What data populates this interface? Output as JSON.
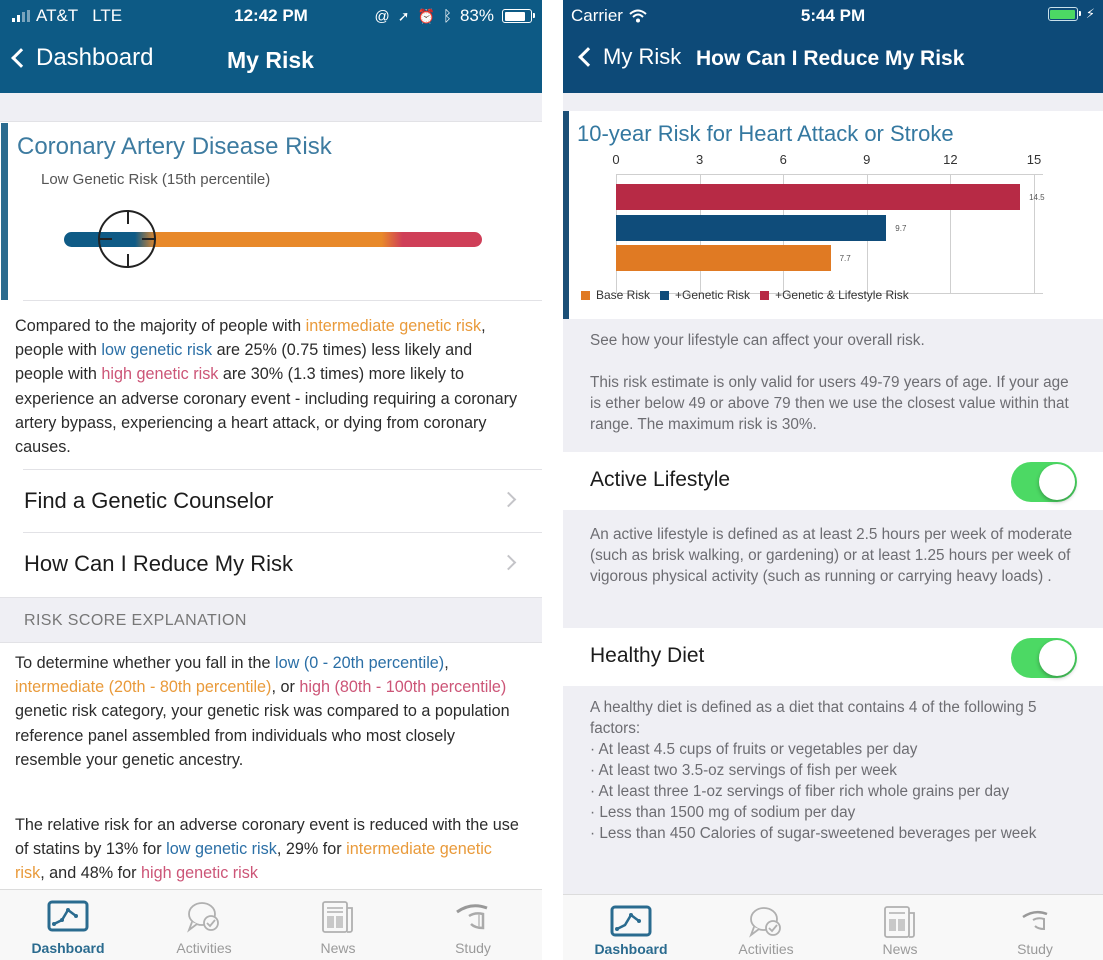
{
  "left": {
    "status": {
      "carrier": "AT&T",
      "network": "LTE",
      "time": "12:42 PM",
      "battery": "83%"
    },
    "nav": {
      "back_label": "Dashboard",
      "title": "My Risk"
    },
    "card": {
      "title": "Coronary Artery Disease Risk",
      "subtitle": "Low Genetic Risk (15th percentile)",
      "percentile": 15,
      "colors": {
        "low": "#0f5b86",
        "intermediate": "#e8892a",
        "high": "#cf3f58"
      }
    },
    "comparison": {
      "p1": "Compared to the majority of people with ",
      "int": "intermediate genetic risk",
      "p2": ", people with ",
      "low": "low genetic risk",
      "p3": " are 25% (0.75 times) less likely and people with ",
      "high": "high genetic risk",
      "p4": " are 30% (1.3 times) more likely to experience an adverse coronary event - including requiring a coronary artery bypass, experiencing a heart attack, or dying from coronary causes."
    },
    "links": [
      {
        "label": "Find a Genetic Counselor"
      },
      {
        "label": "How Can I Reduce My Risk"
      }
    ],
    "section_header": "RISK SCORE EXPLANATION",
    "explanation": {
      "p1": "To determine whether you fall in the ",
      "low": "low (0 - 20th percentile)",
      "p2": ", ",
      "int": "intermediate (20th - 80th percentile)",
      "p3": ", or ",
      "high": "high (80th - 100th percentile)",
      "p4": " genetic risk category, your genetic risk was compared to a population reference panel assembled from individuals who most closely resemble your genetic ancestry."
    },
    "statins": {
      "p1": "The relative risk for an adverse coronary event is reduced with the use of statins by 13% for ",
      "low": "low genetic risk",
      "p2": ", 29% for ",
      "int": "intermediate genetic risk",
      "p3": ", and 48% for ",
      "high": "high genetic risk"
    },
    "tabs": [
      {
        "label": "Dashboard",
        "icon": "chart-line-icon",
        "active": true
      },
      {
        "label": "Activities",
        "icon": "chat-check-icon",
        "active": false
      },
      {
        "label": "News",
        "icon": "newspaper-icon",
        "active": false
      },
      {
        "label": "Study",
        "icon": "study-icon",
        "active": false
      }
    ]
  },
  "right": {
    "status": {
      "carrier": "Carrier",
      "time": "5:44 PM"
    },
    "nav": {
      "back_label": "My Risk",
      "title": "How Can I Reduce My Risk"
    },
    "intro": "See how your lifestyle can affect your overall risk.",
    "validity": "This risk estimate is only valid for users 49-79 years of age. If your age is ether below 49 or above 79 then we use the closest value within that range. The maximum risk is 30%.",
    "toggles": [
      {
        "label": "Active Lifestyle",
        "on": true,
        "description": "An active lifestyle is defined as at least 2.5 hours per week of moderate (such as brisk walking, or gardening) or at least 1.25 hours per week of vigorous physical activity (such as running or carrying heavy loads) ."
      },
      {
        "label": "Healthy Diet",
        "on": true,
        "description_intro": "A healthy diet is defined as a diet that contains 4 of the following 5 factors:",
        "factors": [
          "· At least 4.5 cups of fruits or vegetables per day",
          "· At least two 3.5-oz servings of fish per week",
          "· At least three 1-oz servings of fiber rich whole grains per day",
          "· Less than 1500 mg of sodium per day",
          "· Less than 450 Calories of sugar-sweetened beverages per week"
        ]
      }
    ],
    "tabs": [
      {
        "label": "Dashboard",
        "active": true
      },
      {
        "label": "Activities",
        "active": false
      },
      {
        "label": "News",
        "active": false
      },
      {
        "label": "Study",
        "active": false
      }
    ]
  },
  "chart_data": {
    "type": "bar",
    "orientation": "horizontal",
    "title": "10-year Risk for Heart Attack or Stroke",
    "categories": [
      "+Genetic & Lifestyle Risk",
      "+Genetic Risk",
      "Base Risk"
    ],
    "values": [
      14.5,
      9.7,
      7.7
    ],
    "value_labels": [
      "14.5",
      "9.7",
      "7.7"
    ],
    "colors": [
      "#b72a45",
      "#0f4c7a",
      "#e07a23"
    ],
    "xticks": [
      0,
      3,
      6,
      9,
      12,
      15
    ],
    "xlim": [
      0,
      15
    ],
    "xaxis_position": "top",
    "grid": true,
    "legend": [
      "Base Risk",
      "+Genetic Risk",
      "+Genetic & Lifestyle Risk"
    ],
    "legend_position": "bottom",
    "xlabel": "",
    "ylabel": ""
  }
}
